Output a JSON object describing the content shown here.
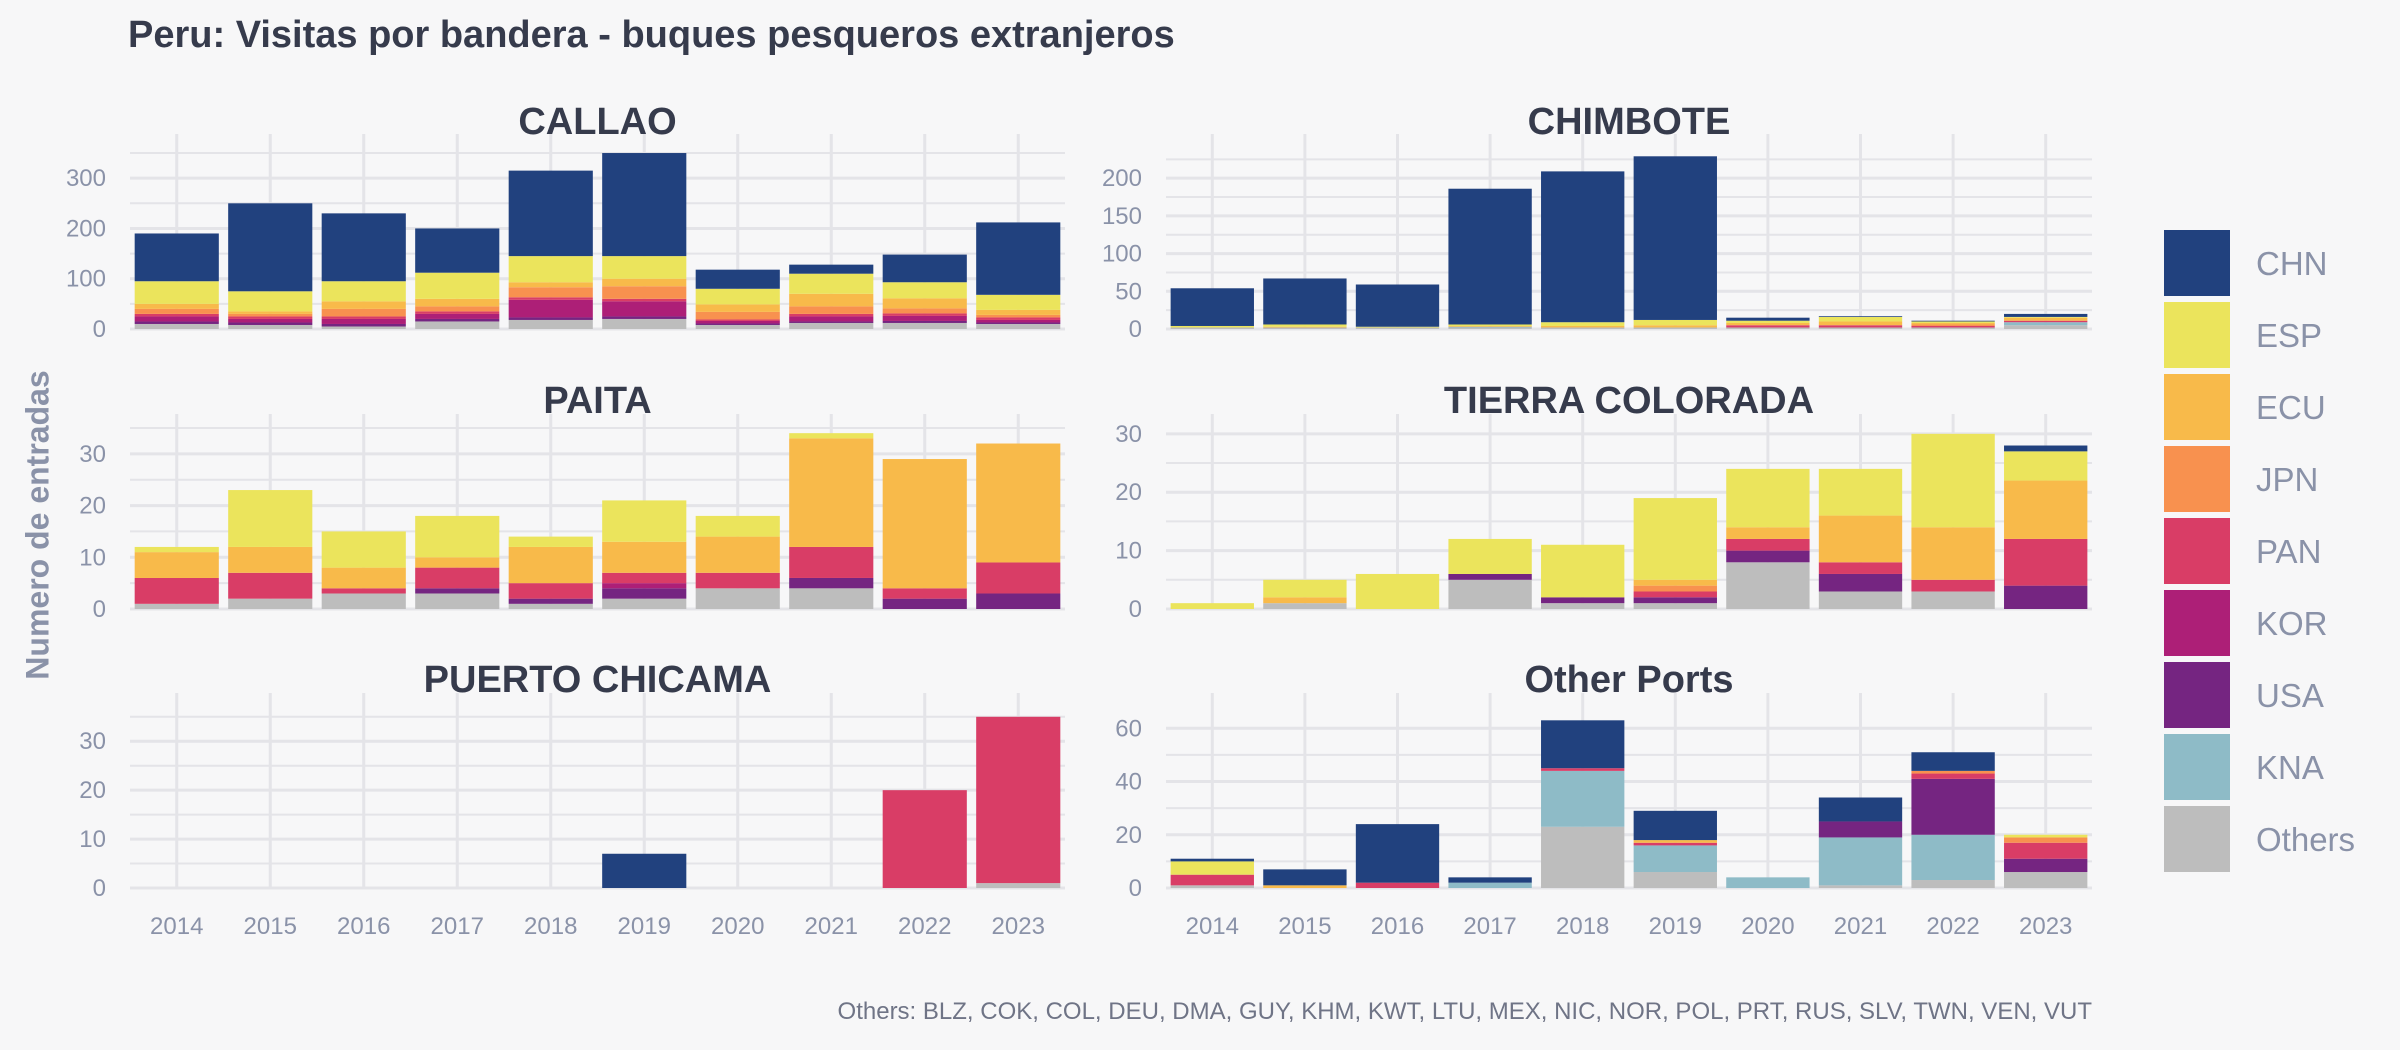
{
  "title": "Peru: Visitas por bandera - buques pesqueros extranjeros",
  "ylabel": "Numero de entradas",
  "footnote": "Others: BLZ, COK, COL, DEU, DMA, GUY, KHM, KWT, LTU, MEX, NIC, NOR, POL, PRT, RUS, SLV, TWN, VEN, VUT",
  "colors": {
    "CHN": "#21417e",
    "ESP": "#ebe45c",
    "ECU": "#f8ba4a",
    "JPN": "#f8914f",
    "PAN": "#d93d66",
    "KOR": "#ad1f77",
    "USA": "#752581",
    "KNA": "#8ebbc7",
    "Others": "#bdbdbd"
  },
  "legend": [
    "CHN",
    "ESP",
    "ECU",
    "JPN",
    "PAN",
    "KOR",
    "USA",
    "KNA",
    "Others"
  ],
  "chart_data": [
    {
      "type": "bar",
      "stacked": true,
      "title": "CALLAO",
      "categories": [
        "2014",
        "2015",
        "2016",
        "2017",
        "2018",
        "2019",
        "2020",
        "2021",
        "2022",
        "2023"
      ],
      "ylim": [
        0,
        360
      ],
      "yticks": [
        0,
        100,
        200,
        300
      ],
      "series": [
        {
          "name": "Others",
          "values": [
            10,
            8,
            5,
            15,
            18,
            20,
            8,
            12,
            12,
            10
          ]
        },
        {
          "name": "KNA",
          "values": [
            0,
            0,
            0,
            0,
            0,
            0,
            0,
            0,
            0,
            0
          ]
        },
        {
          "name": "USA",
          "values": [
            5,
            5,
            5,
            5,
            5,
            5,
            3,
            3,
            4,
            3
          ]
        },
        {
          "name": "KOR",
          "values": [
            10,
            7,
            10,
            10,
            35,
            30,
            5,
            10,
            10,
            5
          ]
        },
        {
          "name": "PAN",
          "values": [
            5,
            5,
            5,
            5,
            5,
            5,
            3,
            5,
            5,
            5
          ]
        },
        {
          "name": "JPN",
          "values": [
            10,
            5,
            15,
            10,
            20,
            25,
            15,
            15,
            10,
            5
          ]
        },
        {
          "name": "ECU",
          "values": [
            10,
            5,
            15,
            15,
            10,
            15,
            15,
            25,
            20,
            10
          ]
        },
        {
          "name": "ESP",
          "values": [
            45,
            40,
            40,
            52,
            52,
            45,
            31,
            40,
            32,
            30
          ]
        },
        {
          "name": "CHN",
          "values": [
            95,
            175,
            135,
            88,
            170,
            205,
            38,
            18,
            55,
            144
          ]
        }
      ]
    },
    {
      "type": "bar",
      "stacked": true,
      "title": "CHIMBOTE",
      "categories": [
        "2014",
        "2015",
        "2016",
        "2017",
        "2018",
        "2019",
        "2020",
        "2021",
        "2022",
        "2023"
      ],
      "ylim": [
        0,
        240
      ],
      "yticks": [
        0,
        50,
        100,
        150,
        200
      ],
      "series": [
        {
          "name": "Others",
          "values": [
            2,
            2,
            2,
            2,
            2,
            2,
            2,
            2,
            2,
            5
          ]
        },
        {
          "name": "KNA",
          "values": [
            0,
            0,
            0,
            1,
            0,
            0,
            0,
            0,
            0,
            4
          ]
        },
        {
          "name": "USA",
          "values": [
            0,
            0,
            0,
            0,
            0,
            0,
            0,
            0,
            0,
            0
          ]
        },
        {
          "name": "KOR",
          "values": [
            0,
            0,
            0,
            0,
            0,
            0,
            0,
            0,
            0,
            0
          ]
        },
        {
          "name": "PAN",
          "values": [
            0,
            0,
            0,
            0,
            0,
            0,
            3,
            3,
            2,
            2
          ]
        },
        {
          "name": "JPN",
          "values": [
            0,
            0,
            0,
            0,
            0,
            0,
            0,
            0,
            2,
            0
          ]
        },
        {
          "name": "ECU",
          "values": [
            0,
            1,
            0,
            1,
            2,
            3,
            3,
            5,
            2,
            4
          ]
        },
        {
          "name": "ESP",
          "values": [
            2,
            3,
            1,
            2,
            5,
            7,
            3,
            6,
            2,
            1
          ]
        },
        {
          "name": "CHN",
          "values": [
            50,
            61,
            56,
            180,
            200,
            217,
            4,
            1,
            1,
            4
          ]
        }
      ]
    },
    {
      "type": "bar",
      "stacked": true,
      "title": "PAITA",
      "categories": [
        "2014",
        "2015",
        "2016",
        "2017",
        "2018",
        "2019",
        "2020",
        "2021",
        "2022",
        "2023"
      ],
      "ylim": [
        0,
        35
      ],
      "yticks": [
        0,
        10,
        20,
        30
      ],
      "series": [
        {
          "name": "Others",
          "values": [
            1,
            2,
            3,
            3,
            1,
            2,
            4,
            4,
            0,
            0
          ]
        },
        {
          "name": "KNA",
          "values": [
            0,
            0,
            0,
            0,
            0,
            0,
            0,
            0,
            0,
            0
          ]
        },
        {
          "name": "USA",
          "values": [
            0,
            0,
            0,
            1,
            1,
            2,
            0,
            2,
            2,
            3
          ]
        },
        {
          "name": "KOR",
          "values": [
            0,
            0,
            0,
            0,
            0,
            1,
            0,
            0,
            0,
            0
          ]
        },
        {
          "name": "PAN",
          "values": [
            5,
            5,
            1,
            4,
            3,
            2,
            3,
            6,
            2,
            6
          ]
        },
        {
          "name": "JPN",
          "values": [
            0,
            0,
            0,
            0,
            0,
            0,
            0,
            0,
            0,
            0
          ]
        },
        {
          "name": "ECU",
          "values": [
            5,
            5,
            4,
            2,
            7,
            6,
            7,
            21,
            25,
            23
          ]
        },
        {
          "name": "ESP",
          "values": [
            1,
            11,
            7,
            8,
            2,
            8,
            4,
            1,
            0,
            0
          ]
        },
        {
          "name": "CHN",
          "values": [
            0,
            0,
            0,
            0,
            0,
            0,
            0,
            0,
            0,
            0
          ]
        }
      ]
    },
    {
      "type": "bar",
      "stacked": true,
      "title": "TIERRA COLORADA",
      "categories": [
        "2014",
        "2015",
        "2016",
        "2017",
        "2018",
        "2019",
        "2020",
        "2021",
        "2022",
        "2023"
      ],
      "ylim": [
        0,
        31
      ],
      "yticks": [
        0,
        10,
        20,
        30
      ],
      "series": [
        {
          "name": "Others",
          "values": [
            0,
            1,
            0,
            5,
            1,
            1,
            8,
            3,
            3,
            0
          ]
        },
        {
          "name": "KNA",
          "values": [
            0,
            0,
            0,
            0,
            0,
            0,
            0,
            0,
            0,
            0
          ]
        },
        {
          "name": "USA",
          "values": [
            0,
            0,
            0,
            1,
            1,
            1,
            2,
            3,
            0,
            4
          ]
        },
        {
          "name": "KOR",
          "values": [
            0,
            0,
            0,
            0,
            0,
            0,
            0,
            0,
            0,
            0
          ]
        },
        {
          "name": "PAN",
          "values": [
            0,
            0,
            0,
            0,
            0,
            1,
            2,
            2,
            2,
            8
          ]
        },
        {
          "name": "JPN",
          "values": [
            0,
            0,
            0,
            0,
            0,
            1,
            0,
            0,
            0,
            0
          ]
        },
        {
          "name": "ECU",
          "values": [
            0,
            1,
            0,
            0,
            0,
            1,
            2,
            8,
            9,
            10
          ]
        },
        {
          "name": "ESP",
          "values": [
            1,
            3,
            6,
            6,
            9,
            14,
            10,
            8,
            16,
            5
          ]
        },
        {
          "name": "CHN",
          "values": [
            0,
            0,
            0,
            0,
            0,
            0,
            0,
            0,
            0,
            1
          ]
        }
      ]
    },
    {
      "type": "bar",
      "stacked": true,
      "title": "PUERTO CHICAMA",
      "categories": [
        "2014",
        "2015",
        "2016",
        "2017",
        "2018",
        "2019",
        "2020",
        "2021",
        "2022",
        "2023"
      ],
      "ylim": [
        0,
        37
      ],
      "yticks": [
        0,
        10,
        20,
        30
      ],
      "series": [
        {
          "name": "Others",
          "values": [
            0,
            0,
            0,
            0,
            0,
            0,
            0,
            0,
            0,
            1
          ]
        },
        {
          "name": "KNA",
          "values": [
            0,
            0,
            0,
            0,
            0,
            0,
            0,
            0,
            0,
            0
          ]
        },
        {
          "name": "USA",
          "values": [
            0,
            0,
            0,
            0,
            0,
            0,
            0,
            0,
            0,
            0
          ]
        },
        {
          "name": "KOR",
          "values": [
            0,
            0,
            0,
            0,
            0,
            0,
            0,
            0,
            0,
            0
          ]
        },
        {
          "name": "PAN",
          "values": [
            0,
            0,
            0,
            0,
            0,
            0,
            0,
            0,
            20,
            34
          ]
        },
        {
          "name": "JPN",
          "values": [
            0,
            0,
            0,
            0,
            0,
            0,
            0,
            0,
            0,
            0
          ]
        },
        {
          "name": "ECU",
          "values": [
            0,
            0,
            0,
            0,
            0,
            0,
            0,
            0,
            0,
            0
          ]
        },
        {
          "name": "ESP",
          "values": [
            0,
            0,
            0,
            0,
            0,
            0,
            0,
            0,
            0,
            0
          ]
        },
        {
          "name": "CHN",
          "values": [
            0,
            0,
            0,
            0,
            0,
            7,
            0,
            0,
            0,
            0
          ]
        }
      ]
    },
    {
      "type": "bar",
      "stacked": true,
      "title": "Other Ports",
      "categories": [
        "2014",
        "2015",
        "2016",
        "2017",
        "2018",
        "2019",
        "2020",
        "2021",
        "2022",
        "2023"
      ],
      "ylim": [
        0,
        68
      ],
      "yticks": [
        0,
        20,
        40,
        60
      ],
      "series": [
        {
          "name": "Others",
          "values": [
            1,
            0,
            0,
            0,
            23,
            6,
            0,
            1,
            3,
            6
          ]
        },
        {
          "name": "KNA",
          "values": [
            0,
            0,
            0,
            2,
            21,
            10,
            4,
            18,
            17,
            0
          ]
        },
        {
          "name": "USA",
          "values": [
            0,
            0,
            0,
            0,
            0,
            0,
            0,
            6,
            21,
            5
          ]
        },
        {
          "name": "KOR",
          "values": [
            0,
            0,
            0,
            0,
            0,
            0,
            0,
            0,
            0,
            0
          ]
        },
        {
          "name": "PAN",
          "values": [
            4,
            0,
            2,
            0,
            1,
            1,
            0,
            0,
            2,
            6
          ]
        },
        {
          "name": "JPN",
          "values": [
            0,
            0,
            0,
            0,
            0,
            0,
            0,
            0,
            1,
            2
          ]
        },
        {
          "name": "ECU",
          "values": [
            0,
            1,
            0,
            0,
            0,
            1,
            0,
            0,
            0,
            0
          ]
        },
        {
          "name": "ESP",
          "values": [
            5,
            0,
            0,
            0,
            0,
            0,
            0,
            0,
            0,
            1
          ]
        },
        {
          "name": "CHN",
          "values": [
            1,
            6,
            22,
            2,
            18,
            11,
            0,
            9,
            7,
            0
          ]
        }
      ]
    }
  ]
}
